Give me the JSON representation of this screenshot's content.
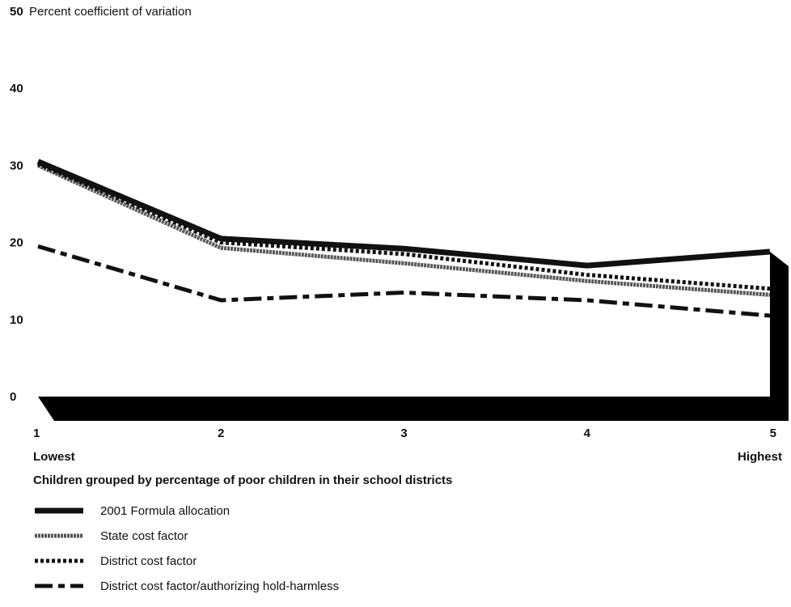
{
  "chart_data": {
    "type": "line",
    "ylabel": "Percent coefficient of variation",
    "xlabel": "Children grouped by percentage of poor children in their school districts",
    "ylim": [
      0,
      50
    ],
    "yticks": [
      0,
      10,
      20,
      30,
      40,
      50
    ],
    "x": [
      1,
      2,
      3,
      4,
      5
    ],
    "x_ticks": [
      "1",
      "2",
      "3",
      "4",
      "5"
    ],
    "x_end_labels": {
      "low": "Lowest",
      "high": "Highest"
    },
    "grid": false,
    "legend_position": "bottom-left",
    "series": [
      {
        "name": "2001 Formula allocation",
        "values": [
          30.5,
          20.5,
          19.2,
          17.0,
          18.8
        ],
        "style": "solid",
        "color": "#111111"
      },
      {
        "name": "State cost factor",
        "values": [
          30.0,
          19.3,
          17.3,
          15.0,
          13.2
        ],
        "style": "textured",
        "color": "#555555"
      },
      {
        "name": "District cost factor",
        "values": [
          30.2,
          20.0,
          18.5,
          15.8,
          14.0
        ],
        "style": "dotted",
        "color": "#111111"
      },
      {
        "name": "District cost factor/authorizing hold-harmless",
        "values": [
          19.5,
          12.5,
          13.5,
          12.5,
          10.5
        ],
        "style": "dash-dot",
        "color": "#111111"
      }
    ]
  }
}
